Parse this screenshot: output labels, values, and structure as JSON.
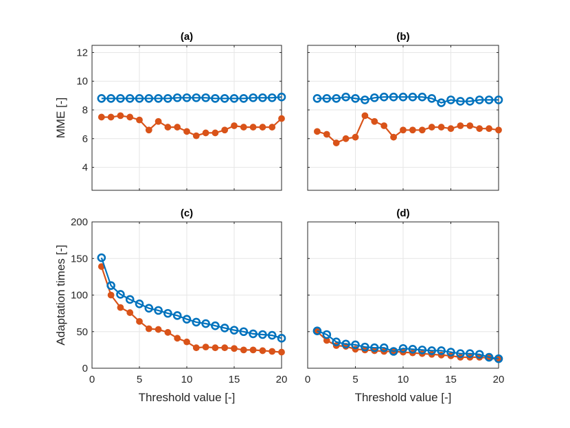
{
  "chart_data": [
    {
      "type": "line",
      "title": "(a)",
      "xlabel": "",
      "ylabel": "MME [-]",
      "xlim": [
        0,
        20
      ],
      "ylim": [
        2.4,
        12.5
      ],
      "xticks": [
        0,
        5,
        10,
        15,
        20
      ],
      "xtick_labels_shown": false,
      "yticks": [
        4,
        6,
        8,
        10,
        12
      ],
      "ytick_labels_shown": true,
      "grid": true,
      "x": [
        1,
        2,
        3,
        4,
        5,
        6,
        7,
        8,
        9,
        10,
        11,
        12,
        13,
        14,
        15,
        16,
        17,
        18,
        19,
        20
      ],
      "series": [
        {
          "name": "series-blue",
          "color": "#0072BD",
          "marker": "open-circle",
          "values": [
            8.8,
            8.8,
            8.8,
            8.8,
            8.8,
            8.8,
            8.8,
            8.8,
            8.85,
            8.85,
            8.85,
            8.85,
            8.8,
            8.8,
            8.8,
            8.8,
            8.85,
            8.85,
            8.85,
            8.9
          ]
        },
        {
          "name": "series-orange",
          "color": "#D95319",
          "marker": "filled-circle",
          "values": [
            7.5,
            7.5,
            7.6,
            7.5,
            7.3,
            6.6,
            7.2,
            6.8,
            6.8,
            6.5,
            6.2,
            6.4,
            6.4,
            6.6,
            6.9,
            6.8,
            6.8,
            6.8,
            6.8,
            7.4
          ]
        }
      ]
    },
    {
      "type": "line",
      "title": "(b)",
      "xlabel": "",
      "ylabel": "",
      "xlim": [
        0,
        20
      ],
      "ylim": [
        2.4,
        12.5
      ],
      "xticks": [
        0,
        5,
        10,
        15,
        20
      ],
      "xtick_labels_shown": false,
      "yticks": [
        4,
        6,
        8,
        10,
        12
      ],
      "ytick_labels_shown": false,
      "grid": true,
      "x": [
        1,
        2,
        3,
        4,
        5,
        6,
        7,
        8,
        9,
        10,
        11,
        12,
        13,
        14,
        15,
        16,
        17,
        18,
        19,
        20
      ],
      "series": [
        {
          "name": "series-blue",
          "color": "#0072BD",
          "marker": "open-circle",
          "values": [
            8.8,
            8.8,
            8.8,
            8.9,
            8.8,
            8.7,
            8.85,
            8.9,
            8.9,
            8.9,
            8.9,
            8.9,
            8.8,
            8.5,
            8.7,
            8.6,
            8.6,
            8.7,
            8.7,
            8.7
          ]
        },
        {
          "name": "series-orange",
          "color": "#D95319",
          "marker": "filled-circle",
          "values": [
            6.5,
            6.3,
            5.7,
            6.0,
            6.1,
            7.6,
            7.2,
            6.9,
            6.1,
            6.6,
            6.6,
            6.6,
            6.8,
            6.8,
            6.7,
            6.9,
            6.9,
            6.7,
            6.7,
            6.6
          ]
        }
      ]
    },
    {
      "type": "line",
      "title": "(c)",
      "xlabel": "Threshold value [-]",
      "ylabel": "Adaptation times [-]",
      "xlim": [
        0,
        20
      ],
      "ylim": [
        0,
        200
      ],
      "xticks": [
        0,
        5,
        10,
        15,
        20
      ],
      "xtick_labels_shown": true,
      "yticks": [
        0,
        50,
        100,
        150,
        200
      ],
      "ytick_labels_shown": true,
      "grid": true,
      "x": [
        1,
        2,
        3,
        4,
        5,
        6,
        7,
        8,
        9,
        10,
        11,
        12,
        13,
        14,
        15,
        16,
        17,
        18,
        19,
        20
      ],
      "series": [
        {
          "name": "series-blue",
          "color": "#0072BD",
          "marker": "open-circle",
          "values": [
            151,
            113,
            101,
            94,
            88,
            82,
            79,
            75,
            72,
            67,
            63,
            61,
            58,
            55,
            52,
            50,
            47,
            46,
            45,
            41
          ]
        },
        {
          "name": "series-orange",
          "color": "#D95319",
          "marker": "filled-circle",
          "values": [
            139,
            100,
            83,
            76,
            64,
            54,
            53,
            49,
            41,
            36,
            28,
            29,
            28,
            28,
            27,
            25,
            25,
            24,
            23,
            22
          ]
        }
      ]
    },
    {
      "type": "line",
      "title": "(d)",
      "xlabel": "Threshold value [-]",
      "ylabel": "",
      "xlim": [
        0,
        20
      ],
      "ylim": [
        0,
        200
      ],
      "xticks": [
        0,
        5,
        10,
        15,
        20
      ],
      "xtick_labels_shown": true,
      "yticks": [
        0,
        50,
        100,
        150,
        200
      ],
      "ytick_labels_shown": false,
      "grid": true,
      "x": [
        1,
        2,
        3,
        4,
        5,
        6,
        7,
        8,
        9,
        10,
        11,
        12,
        13,
        14,
        15,
        16,
        17,
        18,
        19,
        20
      ],
      "series": [
        {
          "name": "series-blue",
          "color": "#0072BD",
          "marker": "open-circle",
          "values": [
            51,
            46,
            36,
            33,
            32,
            29,
            28,
            28,
            23,
            27,
            26,
            25,
            24,
            24,
            22,
            20,
            20,
            19,
            15,
            13
          ]
        },
        {
          "name": "series-orange",
          "color": "#D95319",
          "marker": "filled-circle",
          "values": [
            50,
            38,
            31,
            30,
            26,
            25,
            24,
            23,
            23,
            22,
            21,
            20,
            19,
            18,
            17,
            15,
            15,
            15,
            14,
            12
          ]
        }
      ]
    }
  ]
}
